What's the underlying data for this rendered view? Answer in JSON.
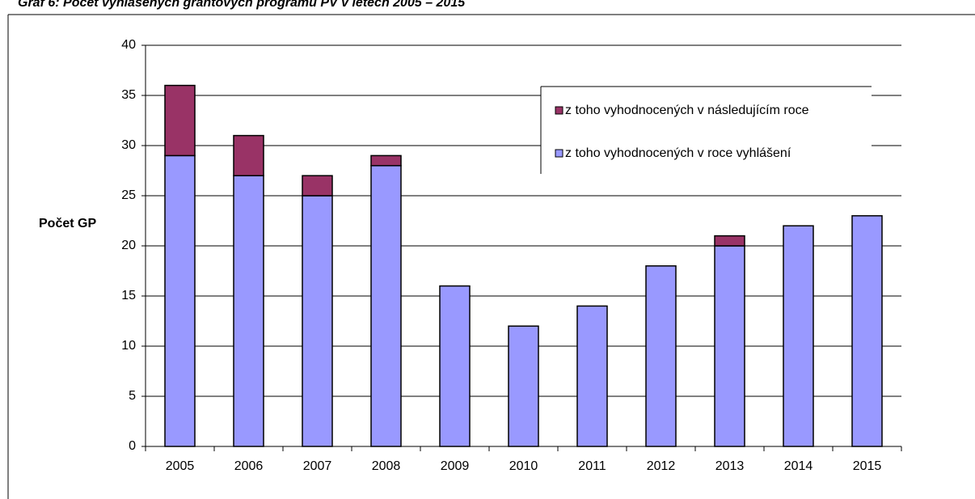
{
  "chart_data": {
    "type": "stacked_bar",
    "title": "Graf 6: Počet vyhlášených grantových programů PV v letech 2005 – 2015",
    "ylabel": "Počet GP",
    "categories": [
      "2005",
      "2006",
      "2007",
      "2008",
      "2009",
      "2010",
      "2011",
      "2012",
      "2013",
      "2014",
      "2015"
    ],
    "series": [
      {
        "name": "z toho vyhodnocených v roce vyhlášení",
        "color": "#9999ff",
        "values": [
          29,
          27,
          25,
          28,
          16,
          12,
          14,
          18,
          20,
          22,
          23
        ]
      },
      {
        "name": "z toho vyhodnocených v následujícím roce",
        "color": "#993366",
        "values": [
          7,
          4,
          2,
          1,
          0,
          0,
          0,
          0,
          1,
          0,
          0
        ]
      }
    ],
    "ylim": [
      0,
      40
    ],
    "yticks": [
      0,
      5,
      10,
      15,
      20,
      25,
      30,
      35,
      40
    ],
    "grid": true
  }
}
